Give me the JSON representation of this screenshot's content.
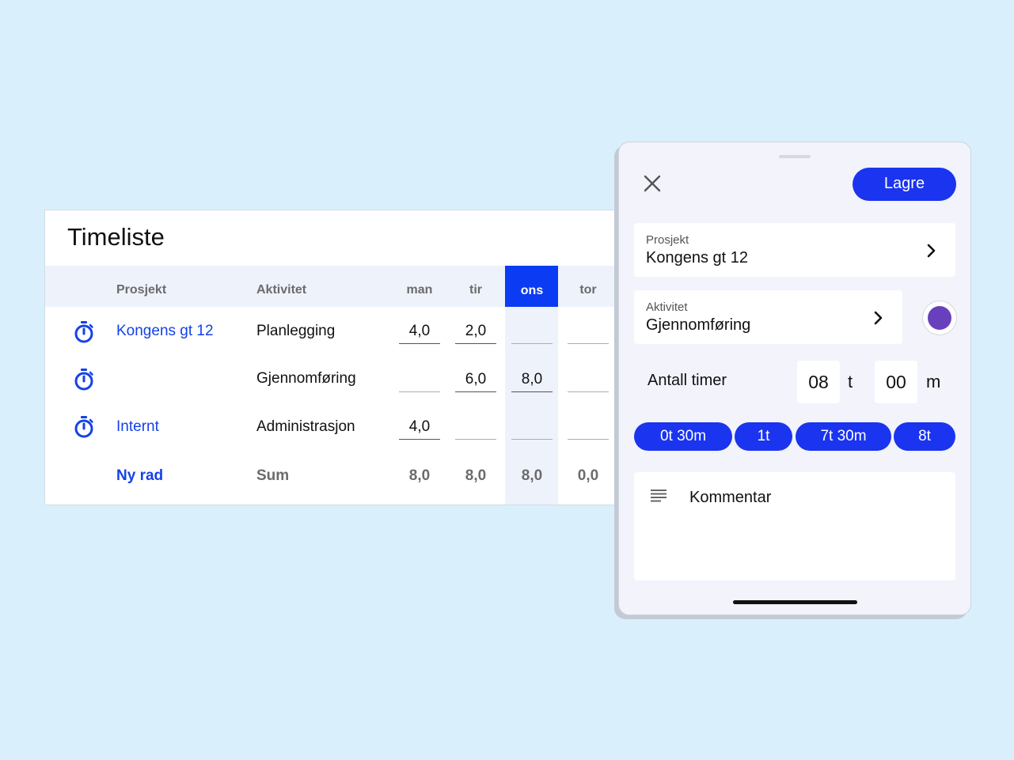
{
  "timesheet": {
    "title": "Timeliste",
    "headers": {
      "project": "Prosjekt",
      "activity": "Aktivitet",
      "days": [
        "man",
        "tir",
        "ons",
        "tor"
      ],
      "active_day": "ons"
    },
    "rows": [
      {
        "project": "Kongens gt 12",
        "activity": "Planlegging",
        "hours": [
          "4,0",
          "2,0",
          "",
          ""
        ]
      },
      {
        "project": "",
        "activity": "Gjennomføring",
        "hours": [
          "",
          "6,0",
          "8,0",
          ""
        ]
      },
      {
        "project": "Internt",
        "activity": "Administrasjon",
        "hours": [
          "4,0",
          "",
          "",
          ""
        ]
      }
    ],
    "new_row_label": "Ny rad",
    "sum_label": "Sum",
    "sums": [
      "8,0",
      "8,0",
      "8,0",
      "0,0"
    ]
  },
  "panel": {
    "save_label": "Lagre",
    "project": {
      "label": "Prosjekt",
      "value": "Kongens gt 12"
    },
    "activity": {
      "label": "Aktivitet",
      "value": "Gjennomføring",
      "color": "#6840bd"
    },
    "hours": {
      "label": "Antall timer",
      "hours_value": "08",
      "hours_unit": "t",
      "minutes_value": "00",
      "minutes_unit": "m"
    },
    "quick_picks": [
      "0t 30m",
      "1t",
      "7t 30m",
      "8t"
    ],
    "comment_label": "Kommentar"
  },
  "colors": {
    "background": "#d9effc",
    "accent": "#1a34ef",
    "link": "#1442e8",
    "highlight_column": "#0b3bf3"
  }
}
